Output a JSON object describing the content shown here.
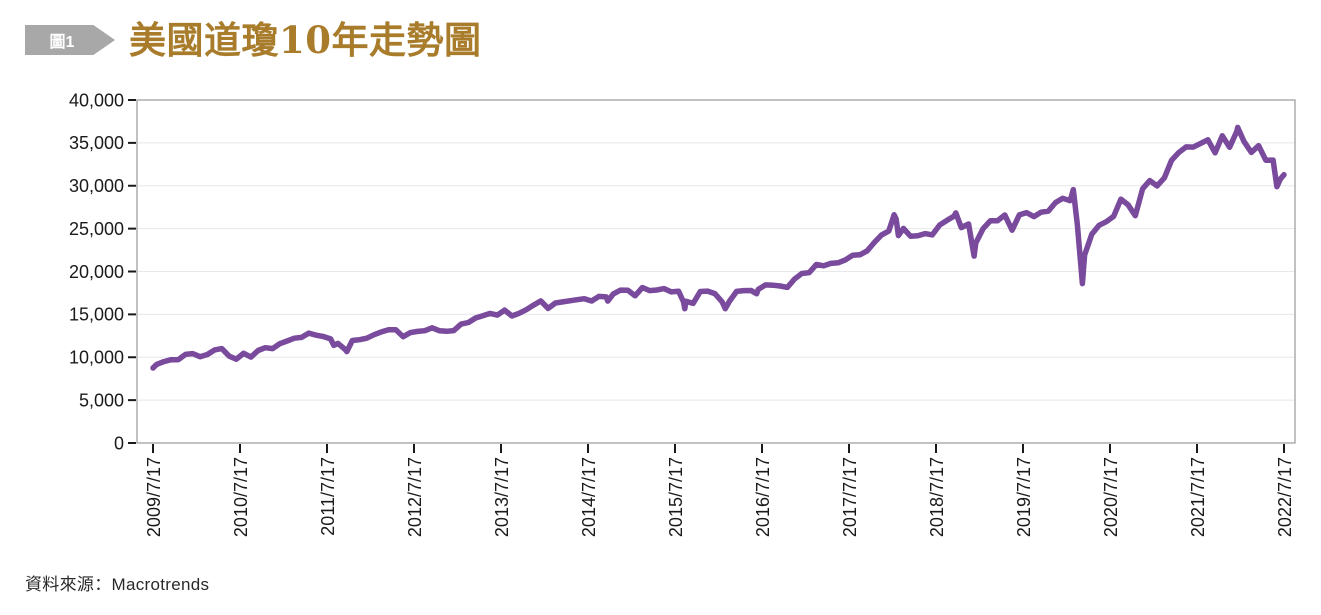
{
  "header": {
    "badge": "圖1",
    "title": "美國道瓊10年走勢圖"
  },
  "footer": {
    "source": "資料來源：Macrotrends"
  },
  "colors": {
    "title": "#a87c2b",
    "badge": "#a8a8a8",
    "line": "#7a4a9d",
    "plot_border": "#a0a0a0",
    "gridline": "#e8e8e8",
    "tick": "#1a1a1a",
    "axis_text": "#1a1a1a"
  },
  "chart_data": {
    "type": "line",
    "title": "美國道瓊10年走勢圖",
    "xlabel": "",
    "ylabel": "",
    "grid": true,
    "legend": "none",
    "ylim": [
      0,
      40000
    ],
    "y_ticks": [
      0,
      5000,
      10000,
      15000,
      20000,
      25000,
      30000,
      35000,
      40000
    ],
    "y_tick_labels": [
      "0",
      "5,000",
      "10,000",
      "15,000",
      "20,000",
      "25,000",
      "30,000",
      "35,000",
      "40,000"
    ],
    "x_tick_labels": [
      "2009/7/17",
      "2010/7/17",
      "2011/7/17",
      "2012/7/17",
      "2013/7/17",
      "2014/7/17",
      "2015/7/17",
      "2016/7/17",
      "2017/7/17",
      "2018/7/17",
      "2019/7/17",
      "2020/7/17",
      "2021/7/17",
      "2022/7/17"
    ],
    "x_tick_positions": [
      2009.542,
      2010.542,
      2011.542,
      2012.542,
      2013.542,
      2014.542,
      2015.542,
      2016.542,
      2017.542,
      2018.542,
      2019.542,
      2020.542,
      2021.542,
      2022.542
    ],
    "line_color": "#7a4a9d",
    "points": [
      [
        2009.542,
        8744
      ],
      [
        2009.583,
        9171
      ],
      [
        2009.667,
        9496
      ],
      [
        2009.75,
        9712
      ],
      [
        2009.833,
        9713
      ],
      [
        2009.917,
        10345
      ],
      [
        2010.0,
        10428
      ],
      [
        2010.083,
        10067
      ],
      [
        2010.167,
        10325
      ],
      [
        2010.25,
        10857
      ],
      [
        2010.333,
        11009
      ],
      [
        2010.417,
        10137
      ],
      [
        2010.5,
        9774
      ],
      [
        2010.583,
        10466
      ],
      [
        2010.667,
        10015
      ],
      [
        2010.75,
        10788
      ],
      [
        2010.833,
        11118
      ],
      [
        2010.917,
        11006
      ],
      [
        2011.0,
        11578
      ],
      [
        2011.083,
        11892
      ],
      [
        2011.167,
        12226
      ],
      [
        2011.25,
        12320
      ],
      [
        2011.333,
        12811
      ],
      [
        2011.417,
        12570
      ],
      [
        2011.5,
        12414
      ],
      [
        2011.583,
        12143
      ],
      [
        2011.62,
        11383
      ],
      [
        2011.667,
        11614
      ],
      [
        2011.75,
        10913
      ],
      [
        2011.77,
        10655
      ],
      [
        2011.833,
        11955
      ],
      [
        2011.917,
        12046
      ],
      [
        2012.0,
        12218
      ],
      [
        2012.083,
        12633
      ],
      [
        2012.167,
        12952
      ],
      [
        2012.25,
        13212
      ],
      [
        2012.333,
        13214
      ],
      [
        2012.417,
        12393
      ],
      [
        2012.5,
        12880
      ],
      [
        2012.583,
        13009
      ],
      [
        2012.667,
        13091
      ],
      [
        2012.75,
        13437
      ],
      [
        2012.833,
        13096
      ],
      [
        2012.917,
        13026
      ],
      [
        2013.0,
        13104
      ],
      [
        2013.083,
        13861
      ],
      [
        2013.167,
        14054
      ],
      [
        2013.25,
        14579
      ],
      [
        2013.333,
        14840
      ],
      [
        2013.417,
        15116
      ],
      [
        2013.5,
        14910
      ],
      [
        2013.583,
        15500
      ],
      [
        2013.667,
        14810
      ],
      [
        2013.75,
        15130
      ],
      [
        2013.833,
        15546
      ],
      [
        2013.917,
        16086
      ],
      [
        2014.0,
        16577
      ],
      [
        2014.083,
        15699
      ],
      [
        2014.167,
        16322
      ],
      [
        2014.25,
        16458
      ],
      [
        2014.333,
        16581
      ],
      [
        2014.417,
        16717
      ],
      [
        2014.5,
        16827
      ],
      [
        2014.583,
        16563
      ],
      [
        2014.667,
        17098
      ],
      [
        2014.75,
        17043
      ],
      [
        2014.77,
        16544
      ],
      [
        2014.833,
        17391
      ],
      [
        2014.917,
        17828
      ],
      [
        2015.0,
        17823
      ],
      [
        2015.083,
        17165
      ],
      [
        2015.167,
        18133
      ],
      [
        2015.25,
        17776
      ],
      [
        2015.333,
        17841
      ],
      [
        2015.417,
        18011
      ],
      [
        2015.5,
        17620
      ],
      [
        2015.583,
        17690
      ],
      [
        2015.64,
        16460
      ],
      [
        2015.655,
        15666
      ],
      [
        2015.667,
        16528
      ],
      [
        2015.75,
        16285
      ],
      [
        2015.833,
        17664
      ],
      [
        2015.917,
        17720
      ],
      [
        2016.0,
        17425
      ],
      [
        2016.083,
        16466
      ],
      [
        2016.12,
        15660
      ],
      [
        2016.167,
        16517
      ],
      [
        2016.25,
        17685
      ],
      [
        2016.333,
        17774
      ],
      [
        2016.417,
        17787
      ],
      [
        2016.48,
        17400
      ],
      [
        2016.5,
        17930
      ],
      [
        2016.583,
        18432
      ],
      [
        2016.667,
        18401
      ],
      [
        2016.75,
        18308
      ],
      [
        2016.833,
        18142
      ],
      [
        2016.917,
        19124
      ],
      [
        2017.0,
        19763
      ],
      [
        2017.083,
        19864
      ],
      [
        2017.167,
        20812
      ],
      [
        2017.25,
        20663
      ],
      [
        2017.333,
        20941
      ],
      [
        2017.417,
        21009
      ],
      [
        2017.5,
        21350
      ],
      [
        2017.583,
        21891
      ],
      [
        2017.667,
        21948
      ],
      [
        2017.75,
        22405
      ],
      [
        2017.833,
        23377
      ],
      [
        2017.917,
        24272
      ],
      [
        2018.0,
        24719
      ],
      [
        2018.06,
        26617
      ],
      [
        2018.083,
        26149
      ],
      [
        2018.11,
        24191
      ],
      [
        2018.167,
        25029
      ],
      [
        2018.25,
        24103
      ],
      [
        2018.333,
        24163
      ],
      [
        2018.417,
        24416
      ],
      [
        2018.5,
        24271
      ],
      [
        2018.583,
        25415
      ],
      [
        2018.667,
        25965
      ],
      [
        2018.75,
        26458
      ],
      [
        2018.77,
        26828
      ],
      [
        2018.833,
        25116
      ],
      [
        2018.917,
        25538
      ],
      [
        2018.98,
        21792
      ],
      [
        2019.0,
        23327
      ],
      [
        2019.083,
        25000
      ],
      [
        2019.167,
        25916
      ],
      [
        2019.25,
        25929
      ],
      [
        2019.333,
        26593
      ],
      [
        2019.417,
        24815
      ],
      [
        2019.5,
        26600
      ],
      [
        2019.583,
        26864
      ],
      [
        2019.667,
        26403
      ],
      [
        2019.75,
        26917
      ],
      [
        2019.833,
        27046
      ],
      [
        2019.917,
        28051
      ],
      [
        2020.0,
        28538
      ],
      [
        2020.083,
        28256
      ],
      [
        2020.12,
        29551
      ],
      [
        2020.167,
        25409
      ],
      [
        2020.225,
        18592
      ],
      [
        2020.25,
        21917
      ],
      [
        2020.333,
        24346
      ],
      [
        2020.417,
        25383
      ],
      [
        2020.5,
        25813
      ],
      [
        2020.583,
        26428
      ],
      [
        2020.667,
        28430
      ],
      [
        2020.75,
        27782
      ],
      [
        2020.833,
        26502
      ],
      [
        2020.917,
        29639
      ],
      [
        2021.0,
        30606
      ],
      [
        2021.083,
        29983
      ],
      [
        2021.167,
        30932
      ],
      [
        2021.25,
        32981
      ],
      [
        2021.333,
        33875
      ],
      [
        2021.417,
        34529
      ],
      [
        2021.5,
        34503
      ],
      [
        2021.583,
        34935
      ],
      [
        2021.667,
        35361
      ],
      [
        2021.75,
        33844
      ],
      [
        2021.833,
        35820
      ],
      [
        2021.917,
        34484
      ],
      [
        2022.0,
        36338
      ],
      [
        2022.01,
        36800
      ],
      [
        2022.083,
        35132
      ],
      [
        2022.167,
        33893
      ],
      [
        2022.25,
        34678
      ],
      [
        2022.333,
        32977
      ],
      [
        2022.417,
        32990
      ],
      [
        2022.46,
        29889
      ],
      [
        2022.5,
        30775
      ],
      [
        2022.542,
        31288
      ]
    ]
  }
}
